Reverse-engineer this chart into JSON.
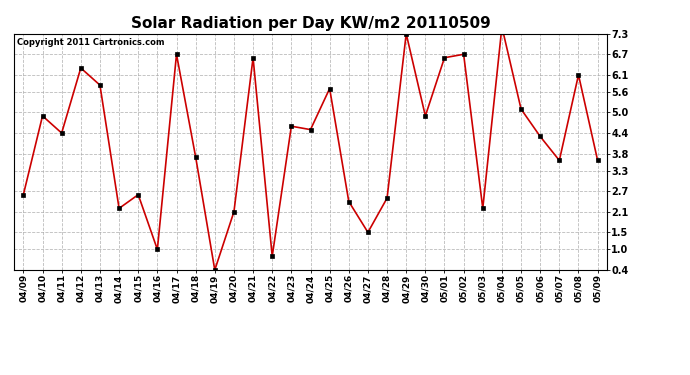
{
  "title": "Solar Radiation per Day KW/m2 20110509",
  "copyright": "Copyright 2011 Cartronics.com",
  "labels": [
    "04/09",
    "04/10",
    "04/11",
    "04/12",
    "04/13",
    "04/14",
    "04/15",
    "04/16",
    "04/17",
    "04/18",
    "04/19",
    "04/20",
    "04/21",
    "04/22",
    "04/23",
    "04/24",
    "04/25",
    "04/26",
    "04/27",
    "04/28",
    "04/29",
    "04/30",
    "05/01",
    "05/02",
    "05/03",
    "05/04",
    "05/05",
    "05/06",
    "05/07",
    "05/08",
    "05/09"
  ],
  "values": [
    2.6,
    4.9,
    4.4,
    6.3,
    5.8,
    2.2,
    2.6,
    1.0,
    6.7,
    3.7,
    0.4,
    2.1,
    6.6,
    0.8,
    4.6,
    4.5,
    5.7,
    2.4,
    1.5,
    2.5,
    7.3,
    4.9,
    6.6,
    6.7,
    2.2,
    7.5,
    5.1,
    4.3,
    3.6,
    6.1,
    3.6
  ],
  "line_color": "#cc0000",
  "marker_color": "#000000",
  "bg_color": "#ffffff",
  "grid_color": "#aaaaaa",
  "ylim_min": 0.4,
  "ylim_max": 7.3,
  "yticks": [
    0.4,
    1.0,
    1.5,
    2.1,
    2.7,
    3.3,
    3.8,
    4.4,
    5.0,
    5.6,
    6.1,
    6.7,
    7.3
  ],
  "title_fontsize": 11,
  "tick_fontsize": 6.5,
  "copyright_fontsize": 6.0
}
